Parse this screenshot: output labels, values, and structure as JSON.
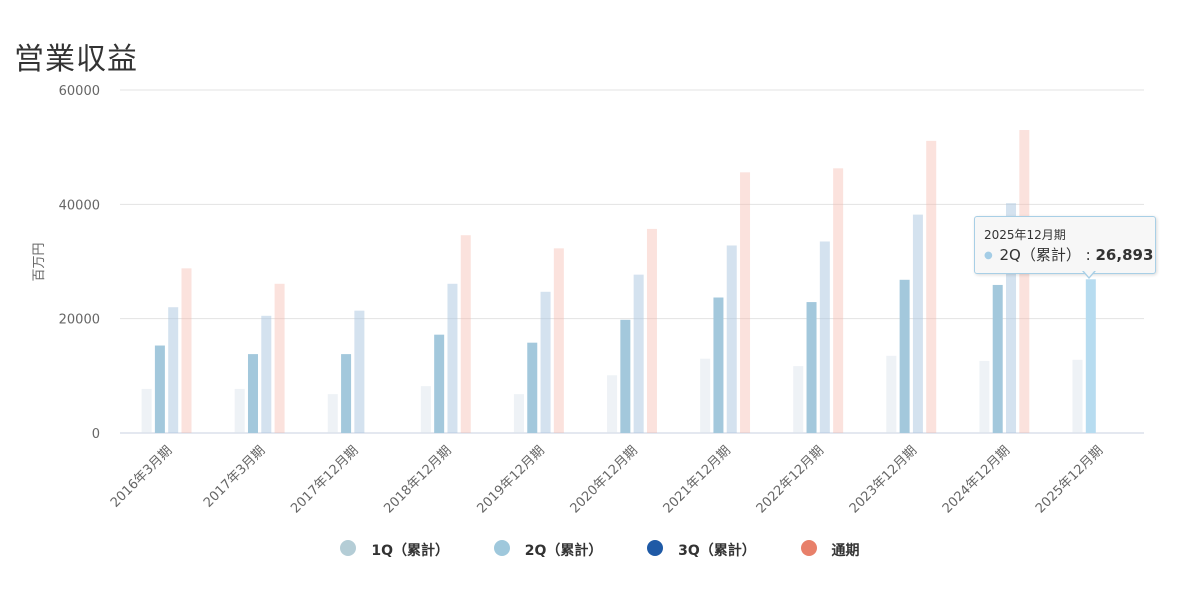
{
  "title": "営業収益",
  "chart_data": {
    "type": "bar",
    "ylabel": "百万円",
    "ylim": [
      0,
      60000
    ],
    "yticks": [
      0,
      20000,
      40000,
      60000
    ],
    "categories": [
      "2016年3月期",
      "2017年3月期",
      "2017年12月期",
      "2018年12月期",
      "2019年12月期",
      "2020年12月期",
      "2021年12月期",
      "2022年12月期",
      "2023年12月期",
      "2024年12月期",
      "2025年12月期"
    ],
    "series": [
      {
        "name": "1Q（累計）",
        "color": "#b4cdd6",
        "values": [
          7700,
          7700,
          6800,
          8200,
          6800,
          10100,
          13000,
          11700,
          13500,
          12600,
          12800
        ]
      },
      {
        "name": "2Q（累計）",
        "color": "#9fc8dc",
        "values": [
          15300,
          13800,
          13800,
          17200,
          15800,
          19800,
          23700,
          22900,
          26800,
          25900,
          26893
        ]
      },
      {
        "name": "3Q（累計）",
        "color": "#1f5aa6",
        "values": [
          22000,
          20500,
          21400,
          26100,
          24700,
          27700,
          32800,
          33500,
          38200,
          40200,
          null
        ]
      },
      {
        "name": "通期",
        "color": "#e8806a",
        "values": [
          28800,
          26100,
          null,
          34600,
          32300,
          35700,
          45600,
          46300,
          51100,
          53000,
          null
        ]
      }
    ],
    "legend_position": "bottom",
    "grid": true
  },
  "tooltip": {
    "title": "2025年12月期",
    "series": "2Q（累計）",
    "separator": ":",
    "value": "26,893"
  }
}
